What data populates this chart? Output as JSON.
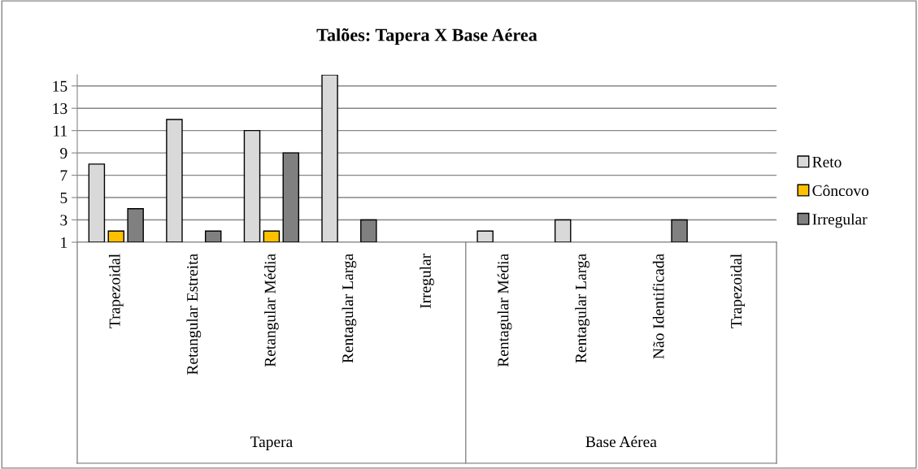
{
  "chart_data": {
    "type": "bar",
    "title": "Talões: Tapera X Base Aérea",
    "categories": [
      "Trapezoidal",
      "Retangular Estreita",
      "Retangular Média",
      "Rentagular Larga",
      "Irregular",
      "Rentagular Média",
      "Rentagular Larga",
      "Não Identificada",
      "Trapezoidal"
    ],
    "series": [
      {
        "name": "Reto",
        "color": "#d9d9d9",
        "values": [
          8,
          12,
          11,
          16,
          null,
          2,
          3,
          null,
          null
        ]
      },
      {
        "name": "Côncovo",
        "color": "#ffc000",
        "values": [
          2,
          null,
          2,
          null,
          null,
          null,
          null,
          null,
          null
        ]
      },
      {
        "name": "Irregular",
        "color": "#808080",
        "values": [
          4,
          2,
          9,
          3,
          null,
          null,
          null,
          3,
          null
        ]
      }
    ],
    "ylim": [
      1,
      16
    ],
    "yticks": [
      1,
      3,
      5,
      7,
      9,
      11,
      13,
      15
    ],
    "grid": "y",
    "legend": "right",
    "annotations": [
      "Tapera",
      "Base Aérea"
    ]
  }
}
